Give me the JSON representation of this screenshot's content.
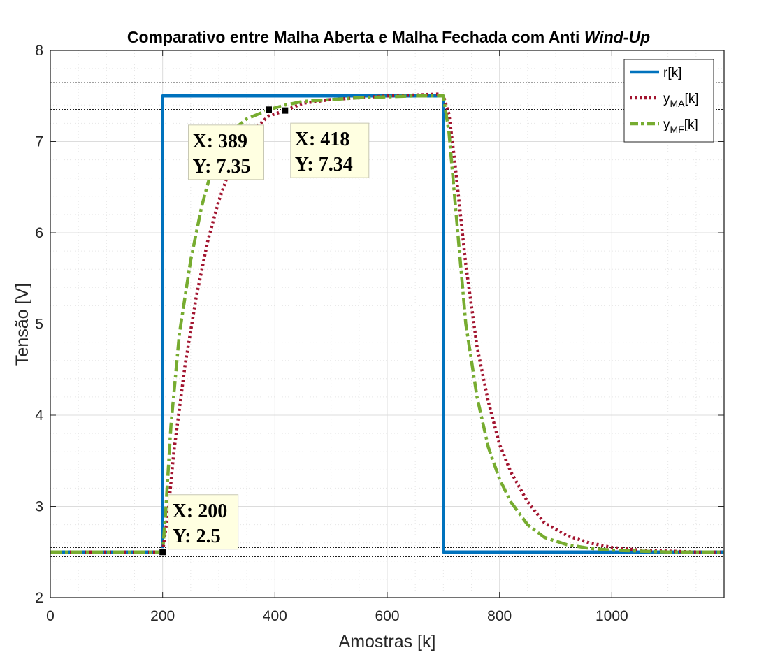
{
  "chart_data": {
    "type": "line",
    "title_main": "Comparativo entre Malha Aberta e Malha Fechada com Anti ",
    "title_italic": "Wind-Up",
    "xlabel": "Amostras [k]",
    "ylabel": "Tensão [V]",
    "xlim": [
      0,
      1200
    ],
    "ylim": [
      2,
      8
    ],
    "xticks": [
      0,
      200,
      400,
      600,
      800,
      1000
    ],
    "yticks": [
      2,
      3,
      4,
      5,
      6,
      7,
      8
    ],
    "grid": true,
    "minor_grid": true,
    "legend_position": "top-right",
    "reference_lines": [
      2.45,
      2.55,
      7.35,
      7.65
    ],
    "series": [
      {
        "name": "r[k]",
        "legend_base": "r[k]",
        "legend_sub": "",
        "legend_suffix": "",
        "color": "#0072BD",
        "style": "solid",
        "x": [
          0,
          200,
          200,
          700,
          700,
          1200
        ],
        "y": [
          2.5,
          2.5,
          7.5,
          7.5,
          2.5,
          2.5
        ]
      },
      {
        "name": "y_MA[k]",
        "legend_base": "y",
        "legend_sub": "MA",
        "legend_suffix": "[k]",
        "color": "#A2142F",
        "style": "dotted",
        "x": [
          0,
          200,
          210,
          220,
          240,
          260,
          280,
          300,
          320,
          340,
          360,
          389,
          418,
          450,
          500,
          550,
          600,
          650,
          690,
          700,
          710,
          720,
          740,
          760,
          780,
          800,
          820,
          850,
          880,
          920,
          960,
          1000,
          1050,
          1100,
          1150,
          1200
        ],
        "y": [
          2.5,
          2.5,
          2.95,
          3.6,
          4.55,
          5.3,
          5.9,
          6.35,
          6.7,
          6.95,
          7.12,
          7.28,
          7.34,
          7.42,
          7.46,
          7.48,
          7.5,
          7.51,
          7.52,
          7.5,
          7.3,
          6.8,
          5.65,
          4.75,
          4.15,
          3.68,
          3.38,
          3.05,
          2.82,
          2.68,
          2.6,
          2.55,
          2.52,
          2.51,
          2.5,
          2.5
        ]
      },
      {
        "name": "y_MF[k]",
        "legend_base": "y",
        "legend_sub": "MF",
        "legend_suffix": "[k]",
        "color": "#77AC30",
        "style": "dashdot",
        "x": [
          0,
          200,
          205,
          215,
          230,
          250,
          270,
          290,
          310,
          330,
          350,
          370,
          389,
          418,
          450,
          500,
          550,
          600,
          650,
          690,
          700,
          710,
          720,
          740,
          760,
          780,
          800,
          820,
          850,
          880,
          920,
          960,
          1000,
          1050,
          1100,
          1150,
          1200
        ],
        "y": [
          2.5,
          2.5,
          2.9,
          3.9,
          4.9,
          5.7,
          6.3,
          6.75,
          7.0,
          7.15,
          7.25,
          7.3,
          7.35,
          7.4,
          7.44,
          7.46,
          7.48,
          7.49,
          7.5,
          7.5,
          7.5,
          7.1,
          6.4,
          5.0,
          4.2,
          3.65,
          3.3,
          3.05,
          2.8,
          2.66,
          2.58,
          2.54,
          2.52,
          2.51,
          2.5,
          2.5,
          2.5
        ]
      }
    ],
    "datatips": [
      {
        "x": 389,
        "y": 7.35,
        "xlabel": "X: 389",
        "ylabel": "Y: 7.35"
      },
      {
        "x": 418,
        "y": 7.34,
        "xlabel": "X: 418",
        "ylabel": "Y: 7.34"
      },
      {
        "x": 200,
        "y": 2.5,
        "xlabel": "X: 200",
        "ylabel": "Y: 2.5"
      }
    ]
  }
}
